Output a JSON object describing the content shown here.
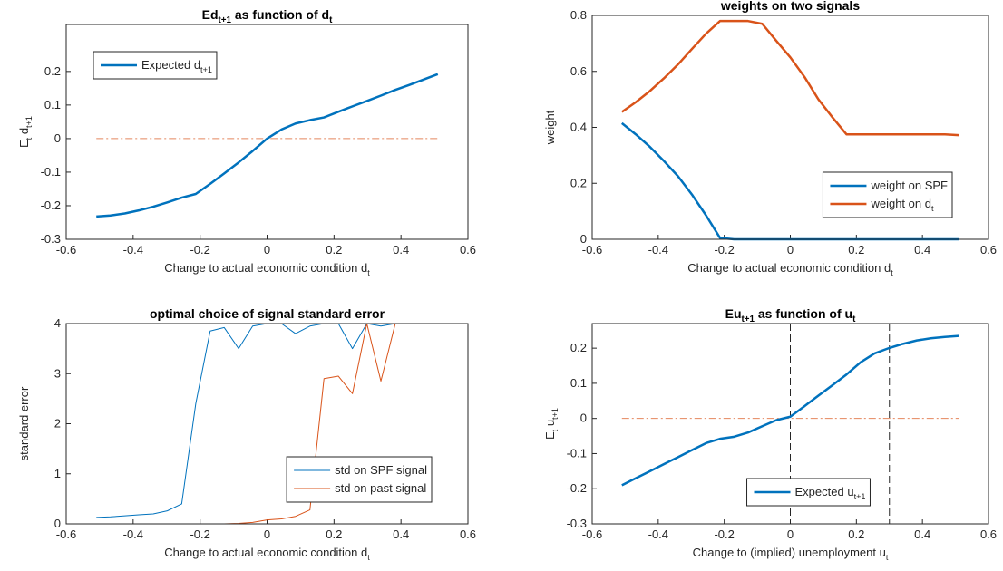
{
  "chart_data": [
    {
      "type": "line",
      "title": [
        "Ed",
        "t+1",
        " as function of d",
        "t"
      ],
      "xlabel": [
        "Change to actual economic condition d",
        "t"
      ],
      "ylabel": [
        "E",
        "t",
        " d",
        "t+1"
      ],
      "xlim": [
        -0.6,
        0.6
      ],
      "xticks": [
        -0.6,
        -0.4,
        -0.2,
        0,
        0.2,
        0.4,
        0.6
      ],
      "ylim": [
        -0.3,
        0.34
      ],
      "yticks": [
        -0.3,
        -0.2,
        -0.1,
        0,
        0.1,
        0.2
      ],
      "x": [
        -0.51,
        -0.468,
        -0.425,
        -0.383,
        -0.34,
        -0.298,
        -0.255,
        -0.213,
        -0.17,
        -0.128,
        -0.085,
        -0.043,
        0,
        0.043,
        0.085,
        0.128,
        0.17,
        0.213,
        0.255,
        0.298,
        0.34,
        0.383,
        0.425,
        0.468,
        0.51
      ],
      "series": [
        {
          "name": [
            "Expected d",
            "t+1"
          ],
          "color": "#0072BD",
          "values": [
            -0.232,
            -0.229,
            -0.223,
            -0.214,
            -0.203,
            -0.19,
            -0.176,
            -0.165,
            -0.135,
            -0.104,
            -0.071,
            -0.037,
            0,
            0.027,
            0.045,
            0.055,
            0.063,
            0.08,
            0.096,
            0.112,
            0.128,
            0.145,
            0.16,
            0.176,
            0.192
          ]
        }
      ],
      "hline": 0,
      "hline_color": "#D95319",
      "line_width": 2.5,
      "legend": "northwest"
    },
    {
      "type": "line",
      "title": "weights on two signals",
      "xlabel": [
        "Change to actual economic condition d",
        "t"
      ],
      "ylabel": "weight",
      "xlim": [
        -0.6,
        0.6
      ],
      "xticks": [
        -0.6,
        -0.4,
        -0.2,
        0,
        0.2,
        0.4,
        0.6
      ],
      "ylim": [
        0,
        0.8
      ],
      "yticks": [
        0,
        0.2,
        0.4,
        0.6,
        0.8
      ],
      "x": [
        -0.51,
        -0.468,
        -0.425,
        -0.383,
        -0.34,
        -0.298,
        -0.255,
        -0.213,
        -0.17,
        -0.128,
        -0.085,
        -0.043,
        0,
        0.043,
        0.085,
        0.128,
        0.17,
        0.213,
        0.255,
        0.298,
        0.34,
        0.383,
        0.425,
        0.468,
        0.51
      ],
      "series": [
        {
          "name": "weight on SPF",
          "color": "#0072BD",
          "values": [
            0.415,
            0.375,
            0.33,
            0.28,
            0.225,
            0.16,
            0.085,
            0.005,
            0,
            0,
            0,
            0,
            0,
            0,
            0,
            0,
            0,
            0,
            0,
            0,
            0,
            0,
            0,
            0,
            0
          ]
        },
        {
          "name": [
            "weight on d",
            "t"
          ],
          "color": "#D95319",
          "values": [
            0.455,
            0.49,
            0.53,
            0.575,
            0.625,
            0.68,
            0.735,
            0.78,
            0.78,
            0.78,
            0.77,
            0.71,
            0.65,
            0.58,
            0.5,
            0.435,
            0.375,
            0.375,
            0.375,
            0.375,
            0.375,
            0.375,
            0.375,
            0.375,
            0.372
          ]
        }
      ],
      "line_width": 2.5,
      "legend": "southeast"
    },
    {
      "type": "line",
      "title": "optimal choice of signal standard error",
      "xlabel": [
        "Change to actual economic condition d",
        "t"
      ],
      "ylabel": "standard error",
      "xlim": [
        -0.6,
        0.6
      ],
      "xticks": [
        -0.6,
        -0.4,
        -0.2,
        0,
        0.2,
        0.4,
        0.6
      ],
      "ylim": [
        0,
        4
      ],
      "yticks": [
        0,
        1,
        2,
        3,
        4
      ],
      "x": [
        -0.51,
        -0.468,
        -0.425,
        -0.383,
        -0.34,
        -0.298,
        -0.255,
        -0.213,
        -0.17,
        -0.128,
        -0.085,
        -0.043,
        0,
        0.043,
        0.085,
        0.128,
        0.17,
        0.213,
        0.255,
        0.298,
        0.34,
        0.383,
        0.425,
        0.468,
        0.51
      ],
      "series": [
        {
          "name": "std on SPF signal",
          "color": "#0072BD",
          "values": [
            0.13,
            0.14,
            0.16,
            0.18,
            0.2,
            0.26,
            0.4,
            2.4,
            3.85,
            3.92,
            3.5,
            3.95,
            4,
            4,
            3.8,
            3.95,
            4,
            4,
            3.5,
            4,
            3.95,
            4,
            4,
            4,
            4
          ]
        },
        {
          "name": "std on past signal",
          "color": "#D95319",
          "values": [
            0,
            0,
            0,
            0,
            0,
            0,
            0,
            0,
            0,
            0,
            0.01,
            0.03,
            0.08,
            0.1,
            0.15,
            0.28,
            2.9,
            2.95,
            2.6,
            4,
            2.85,
            4,
            4,
            4,
            4
          ]
        }
      ],
      "line_width": 1,
      "legend": "southeast"
    },
    {
      "type": "line",
      "title": [
        "Eu",
        "t+1",
        " as function of u",
        "t"
      ],
      "xlabel": [
        "Change to (implied) unemployment u",
        "t"
      ],
      "ylabel": [
        "E",
        "t",
        " u",
        "t+1"
      ],
      "xlim": [
        -0.6,
        0.6
      ],
      "xticks": [
        -0.6,
        -0.4,
        -0.2,
        0,
        0.2,
        0.4,
        0.6
      ],
      "ylim": [
        -0.3,
        0.27
      ],
      "yticks": [
        -0.3,
        -0.2,
        -0.1,
        0,
        0.1,
        0.2
      ],
      "x": [
        -0.51,
        -0.468,
        -0.425,
        -0.383,
        -0.34,
        -0.298,
        -0.255,
        -0.213,
        -0.17,
        -0.128,
        -0.085,
        -0.043,
        0,
        0.043,
        0.085,
        0.128,
        0.17,
        0.213,
        0.255,
        0.298,
        0.34,
        0.383,
        0.425,
        0.468,
        0.51
      ],
      "series": [
        {
          "name": [
            "Expected u",
            "t+1"
          ],
          "color": "#0072BD",
          "values": [
            -0.19,
            -0.17,
            -0.15,
            -0.13,
            -0.11,
            -0.09,
            -0.07,
            -0.058,
            -0.052,
            -0.04,
            -0.022,
            -0.005,
            0.005,
            0.035,
            0.065,
            0.095,
            0.125,
            0.16,
            0.185,
            0.2,
            0.212,
            0.222,
            0.228,
            0.232,
            0.235
          ]
        }
      ],
      "hline": 0,
      "hline_color": "#D95319",
      "vlines": [
        0,
        0.3
      ],
      "line_width": 2.5,
      "legend": "south"
    }
  ]
}
